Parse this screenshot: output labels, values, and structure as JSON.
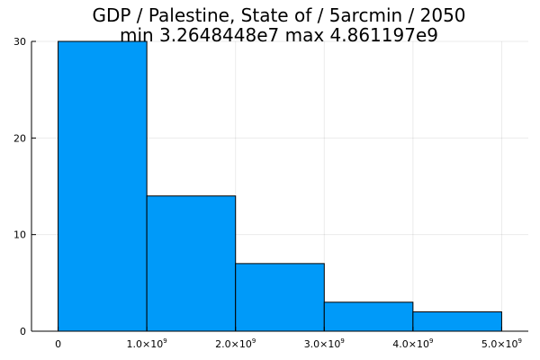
{
  "chart_data": {
    "type": "bar",
    "title": "GDP / Palestine, State of / 5arcmin / 2050",
    "subtitle": "min 3.2648448e7  max 4.861197e9",
    "xlabel": "",
    "ylabel": "",
    "bins": [
      {
        "x0": 0,
        "x1": 1000000000,
        "count": 30
      },
      {
        "x0": 1000000000,
        "x1": 2000000000,
        "count": 14
      },
      {
        "x0": 2000000000,
        "x1": 3000000000,
        "count": 7
      },
      {
        "x0": 3000000000,
        "x1": 4000000000,
        "count": 3
      },
      {
        "x0": 4000000000,
        "x1": 5000000000,
        "count": 2
      }
    ],
    "xlim": [
      -300000000,
      5300000000
    ],
    "ylim": [
      0,
      30
    ],
    "x_ticks": [
      {
        "value": 0,
        "label": "0"
      },
      {
        "value": 1000000000,
        "label": "1.0×10",
        "exp": "9"
      },
      {
        "value": 2000000000,
        "label": "2.0×10",
        "exp": "9"
      },
      {
        "value": 3000000000,
        "label": "3.0×10",
        "exp": "9"
      },
      {
        "value": 4000000000,
        "label": "4.0×10",
        "exp": "9"
      },
      {
        "value": 5000000000,
        "label": "5.0×10",
        "exp": "9"
      }
    ],
    "y_ticks": [
      {
        "value": 0,
        "label": "0"
      },
      {
        "value": 10,
        "label": "10"
      },
      {
        "value": 20,
        "label": "20"
      },
      {
        "value": 30,
        "label": "30"
      }
    ],
    "grid": true,
    "legend": "none",
    "colors": {
      "bar": "#009af9",
      "edge": "#000000"
    }
  }
}
